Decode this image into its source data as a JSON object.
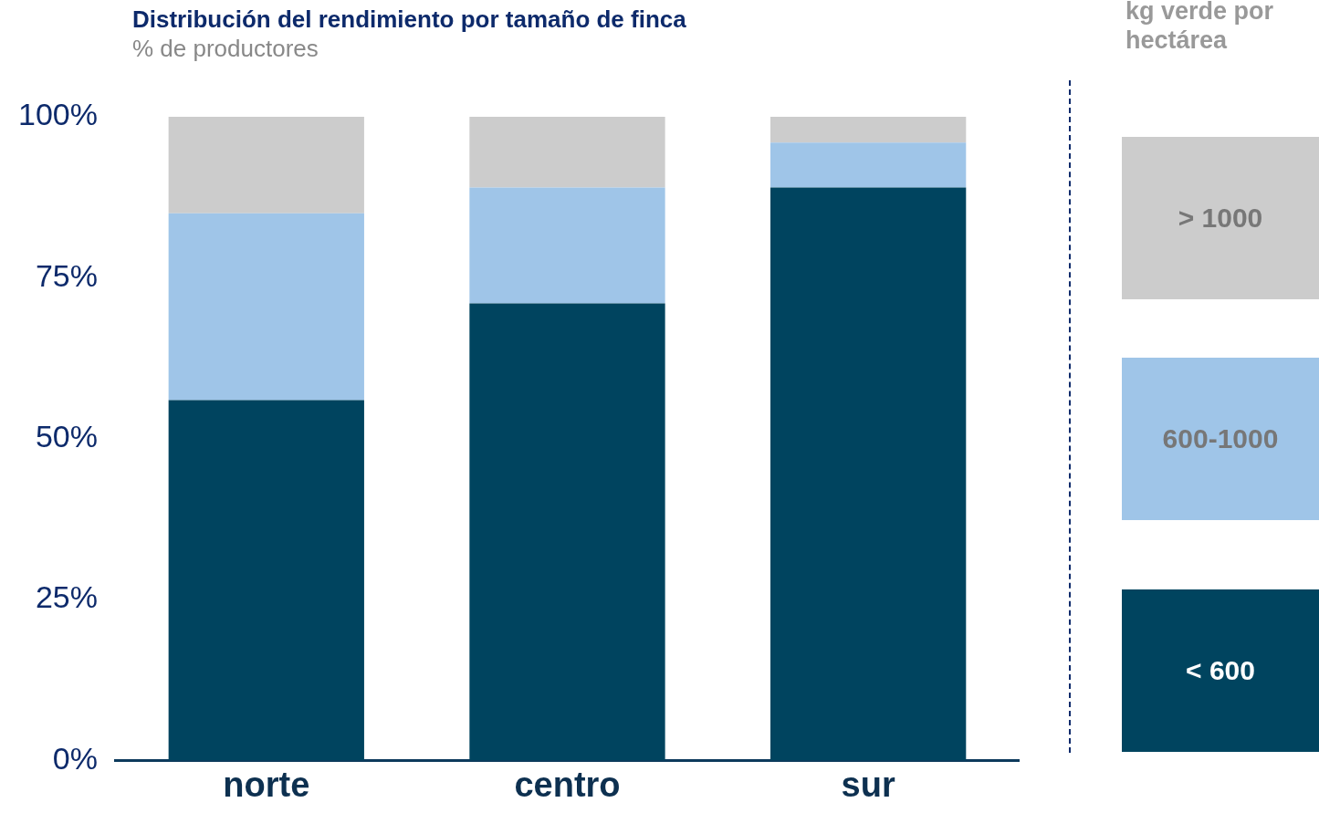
{
  "chart_data": {
    "type": "bar",
    "title": "Distribución del rendimiento por tamaño de finca",
    "subtitle": "% de productores",
    "legend_title": "kg verde por hectárea",
    "categories": [
      "norte",
      "centro",
      "sur"
    ],
    "stacked": true,
    "ylim": [
      0,
      100
    ],
    "yticks": [
      {
        "value": 0,
        "label": "0%"
      },
      {
        "value": 25,
        "label": "25%"
      },
      {
        "value": 50,
        "label": "50%"
      },
      {
        "value": 75,
        "label": "75%"
      },
      {
        "value": 100,
        "label": "100%"
      }
    ],
    "grid": false,
    "legend": "right",
    "series": [
      {
        "name": "< 600",
        "color": "#00445f",
        "values": [
          56,
          71,
          89
        ]
      },
      {
        "name": "600-1000",
        "color": "#9fc5e8",
        "values": [
          29,
          18,
          7
        ]
      },
      {
        "name": "> 1000",
        "color": "#cccccc",
        "values": [
          15,
          11,
          4
        ]
      }
    ]
  }
}
